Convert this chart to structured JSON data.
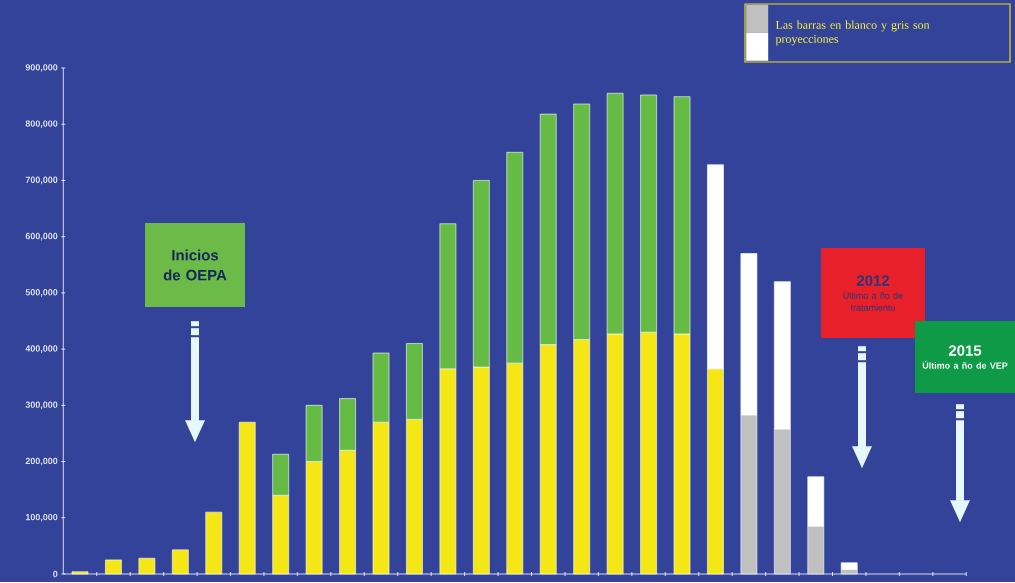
{
  "chart_data": {
    "type": "bar",
    "stacked": true,
    "categories": [
      null,
      null,
      null,
      null,
      null,
      null,
      null,
      null,
      null,
      null,
      null,
      null,
      null,
      null,
      null,
      null,
      null,
      null,
      null,
      null,
      null,
      null,
      null,
      null,
      null,
      null,
      null
    ],
    "series": [
      {
        "color": "#f5e616",
        "values": [
          4000,
          25000,
          28000,
          43000,
          110000,
          270000,
          140000,
          200000,
          220000,
          270000,
          275000,
          365000,
          368000,
          375000,
          408000,
          417000,
          427000,
          430000,
          427000,
          365000,
          null,
          null,
          null,
          null,
          null,
          null,
          null
        ]
      },
      {
        "color": "#c0c0c0",
        "values": [
          null,
          null,
          null,
          null,
          null,
          null,
          null,
          null,
          null,
          null,
          null,
          null,
          null,
          null,
          null,
          null,
          null,
          null,
          null,
          null,
          283000,
          258000,
          85000,
          8000,
          null,
          null,
          null
        ]
      },
      {
        "color": "#66bb44",
        "values": [
          null,
          null,
          null,
          null,
          null,
          null,
          73000,
          100000,
          92000,
          123000,
          135000,
          258000,
          332000,
          375000,
          410000,
          419000,
          428000,
          422000,
          422000,
          null,
          null,
          null,
          null,
          null,
          null,
          null,
          null
        ]
      },
      {
        "color": "#ffffff",
        "values": [
          null,
          null,
          null,
          null,
          null,
          null,
          null,
          null,
          null,
          null,
          null,
          null,
          null,
          null,
          null,
          null,
          null,
          null,
          null,
          363000,
          287000,
          262000,
          88000,
          12000,
          null,
          null,
          null
        ]
      }
    ],
    "ylim": [
      0,
      900000
    ],
    "yticks": [
      0,
      {
        "value": 100000,
        "label": "100,000"
      },
      {
        "value": 200000,
        "label": "200,000"
      },
      {
        "value": 300000,
        "label": "300,000"
      },
      {
        "value": 400000,
        "label": "400,000"
      },
      {
        "value": 500000,
        "label": "500,000"
      },
      {
        "value": 600000,
        "label": "600,000"
      },
      {
        "value": 700000,
        "label": "700,000"
      },
      {
        "value": 800000,
        "label": "800,000"
      },
      {
        "value": 900000,
        "label": "900,000"
      }
    ],
    "annotations": [
      "Las barras en blanco y gris son proyecciones",
      "Inicios de OEPA",
      "2012",
      "Último a ño de tratamiento",
      "2015",
      "Último a ño de VEP"
    ]
  }
}
